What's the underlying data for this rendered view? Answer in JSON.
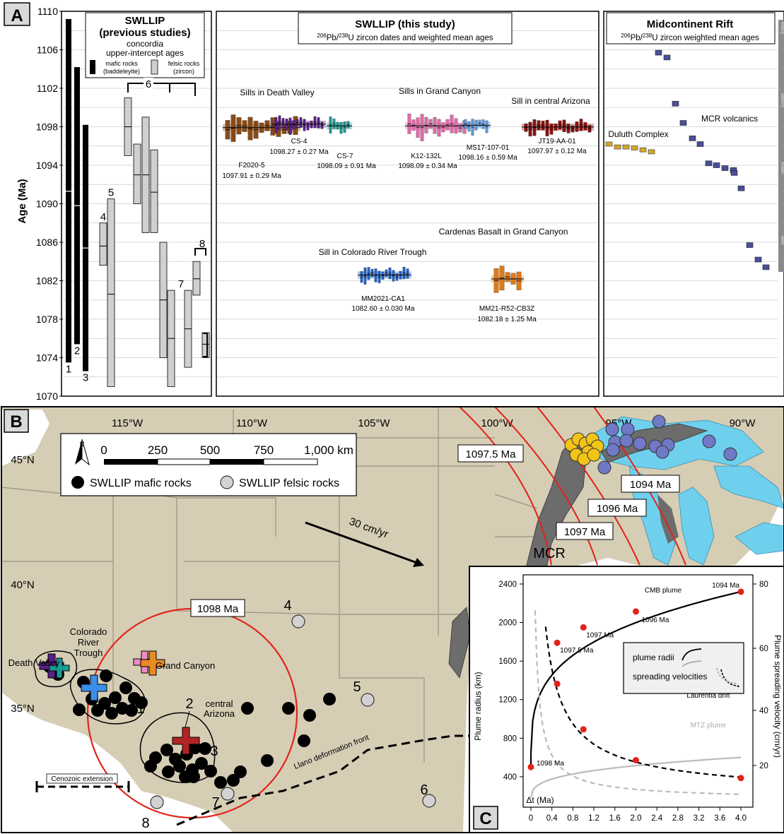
{
  "panel_labels": {
    "a": "A",
    "b": "B",
    "c": "C"
  },
  "panelA": {
    "ylabel": "Age (Ma)",
    "yticks": [
      1070,
      1074,
      1078,
      1082,
      1086,
      1090,
      1094,
      1098,
      1102,
      1106,
      1110
    ],
    "left": {
      "title1": "SWLLIP",
      "title2": "(previous  studies)",
      "sub1": "concordia",
      "sub2": "upper-intercept ages",
      "legend_mafic1": "mafic rocks",
      "legend_mafic2": "(baddeleyite)",
      "legend_felsic1": "felsic rocks",
      "legend_felsic2": "(zircon)",
      "bars": [
        {
          "label": "1",
          "type": "mafic",
          "min": 1073.5,
          "max": 1109.2,
          "mean": 1091.3
        },
        {
          "label": "2",
          "type": "mafic",
          "min": 1075.4,
          "max": 1104.2,
          "mean": 1089.8
        },
        {
          "label": "3",
          "type": "mafic",
          "min": 1072.6,
          "max": 1098.2,
          "mean": 1085.4
        },
        {
          "label": "4",
          "type": "felsic",
          "min": 1083.6,
          "max": 1088.0,
          "mean": 1085.6
        },
        {
          "label": "5",
          "type": "felsic",
          "min": 1071.0,
          "max": 1090.5,
          "mean": 1080.6
        },
        {
          "label": "",
          "type": "felsic",
          "min": 1095.0,
          "max": 1101.0,
          "mean": 1098.0
        },
        {
          "label": "",
          "type": "felsic",
          "min": 1090.0,
          "max": 1096.2,
          "mean": 1093.0
        },
        {
          "label": "",
          "type": "felsic",
          "min": 1087.0,
          "max": 1099.0,
          "mean": 1093.0
        },
        {
          "label": "",
          "type": "felsic",
          "min": 1087.0,
          "max": 1095.6,
          "mean": 1091.2
        },
        {
          "label": "",
          "type": "felsic",
          "min": 1074.0,
          "max": 1086.0,
          "mean": 1080.0
        },
        {
          "label": "",
          "type": "felsic",
          "min": 1071.0,
          "max": 1081.0,
          "mean": 1076.0
        },
        {
          "label": "7",
          "type": "felsic",
          "min": 1073.0,
          "max": 1081.0,
          "mean": 1077.0
        },
        {
          "label": "",
          "type": "felsic",
          "min": 1080.5,
          "max": 1084.0,
          "mean": 1082.2
        },
        {
          "label": "",
          "type": "felsic",
          "min": 1074.0,
          "max": 1076.6,
          "mean": 1075.4
        }
      ],
      "bracket6": "6",
      "bracket8": "8"
    },
    "middle": {
      "title": "SWLLIP (this study)",
      "sub_pre": "206",
      "sub_mid": "Pb/",
      "sub_sup2": "238",
      "sub_post": "U zircon dates and weighted mean ages",
      "groups": [
        {
          "header": "Sills in Death Valley"
        },
        {
          "header": "Sills in Grand Canyon"
        },
        {
          "header": "Sill in central Arizona"
        },
        {
          "header": "Sill in Colorado River Trough"
        },
        {
          "header": "Cardenas Basalt in Grand Canyon"
        }
      ],
      "samples": [
        {
          "name": "F2020-5",
          "age": "1097.91 ± 0.29 Ma",
          "color": "#8a4b14",
          "mean": 1097.91,
          "n": 13
        },
        {
          "name": "CS-4",
          "age": "1098.27 ± 0.27 Ma",
          "color": "#5a1f8a",
          "mean": 1098.27,
          "n": 14
        },
        {
          "name": "CS-7",
          "age": "1098.09 ± 0.91 Ma",
          "color": "#1a9b94",
          "mean": 1098.09,
          "n": 6
        },
        {
          "name": "K12-132L",
          "age": "1098.09 ± 0.34 Ma",
          "color": "#e06aa8",
          "mean": 1098.09,
          "n": 14
        },
        {
          "name": "MS17-107-01",
          "age": "1098.16 ± 0.59 Ma",
          "color": "#5b9be0",
          "mean": 1098.16,
          "n": 7
        },
        {
          "name": "JT19-AA-01",
          "age": "1097.97 ± 0.12 Ma",
          "color": "#8b1111",
          "mean": 1097.97,
          "n": 16
        },
        {
          "name": "MM2021-CA1",
          "age": "1082.60 ± 0.030 Ma",
          "color": "#1f63c8",
          "mean": 1082.6,
          "n": 14
        },
        {
          "name": "MM21-R52-CB3Z",
          "age": "1082.18 ± 1.25 Ma",
          "color": "#dd7a1a",
          "mean": 1082.18,
          "n": 5
        }
      ]
    },
    "right": {
      "title": "Midcontinent Rift",
      "sub_pre": "206",
      "sub_mid": "Pb/",
      "sub_sup2": "238",
      "sub_post": "U zircon weighted mean ages",
      "duluth_label": "Duluth Complex",
      "mcr_label": "MCR volcanics",
      "duluth_ages": [
        1096.2,
        1095.9,
        1095.9,
        1095.8,
        1095.6,
        1095.4
      ],
      "mcr_ages": [
        1105.7,
        1105.2,
        1100.4,
        1098.4,
        1096.8,
        1096.2,
        1094.2,
        1094.0,
        1093.7,
        1093.5,
        1093.2,
        1091.6,
        1085.7,
        1084.2,
        1083.4
      ],
      "strip_labels": [
        "early",
        "latent",
        "main",
        "late"
      ]
    }
  },
  "panelB": {
    "lon_labels": [
      "115°W",
      "110°W",
      "105°W",
      "100°W",
      "95°W",
      "90°W"
    ],
    "lat_labels": [
      "45°N",
      "40°N",
      "35°N"
    ],
    "north": "N",
    "scale_ticks": [
      "0",
      "250",
      "500",
      "750",
      "1,000 km"
    ],
    "legend_mafic": "SWLLIP mafic rocks",
    "legend_felsic": "SWLLIP felsic rocks",
    "arc_labels": [
      "1097.5 Ma",
      "1097 Ma",
      "1096 Ma",
      "1094 Ma"
    ],
    "circle_label": "1098 Ma",
    "drift_label": "30 cm/yr",
    "mcr": "MCR",
    "place_labels": {
      "dv": "Death Valley",
      "crt1": "Colorado",
      "crt2": "River",
      "crt3": "Trough",
      "gc": "Grand Canyon",
      "ca1": "central",
      "ca2": "Arizona"
    },
    "num_labels": [
      "1",
      "2",
      "3",
      "4",
      "5",
      "6",
      "7",
      "8"
    ],
    "cenozoic": "Cenozoic extension",
    "llano": "Llano deformation front"
  },
  "panelC": {
    "ylabel_left": "Plume radius (km)",
    "ylabel_right": "Plume spreading velocity (cm/yr)",
    "xlabel": "Δt (Ma)",
    "xticks": [
      "0",
      "0.4",
      "0.8",
      "1.2",
      "1.6",
      "2.0",
      "2.4",
      "2.8",
      "3.2",
      "3.6",
      "4.0"
    ],
    "yticks_left": [
      "400",
      "800",
      "1200",
      "1600",
      "2000",
      "2400"
    ],
    "yticks_right": [
      "20",
      "40",
      "60",
      "80"
    ],
    "cmb_label": "CMB plume",
    "mtz_label": "MTZ plume",
    "drift_label": "Laurentia drift",
    "legend_radii": "plume radii",
    "legend_vel": "spreading velocities",
    "point_labels": [
      "1098 Ma",
      "1097.5 Ma",
      "1097 Ma",
      "1096 Ma",
      "1094 Ma"
    ]
  },
  "chart_data": [
    {
      "type": "bar",
      "title": "SWLLIP (previous studies) concordia upper-intercept ages",
      "ylabel": "Age (Ma)",
      "ylim": [
        1070,
        1110
      ],
      "series": [
        {
          "name": "mafic rocks (baddeleyite)",
          "ranges": [
            [
              1073.5,
              1109.2
            ],
            [
              1075.4,
              1104.2
            ],
            [
              1072.6,
              1098.2
            ]
          ]
        },
        {
          "name": "felsic rocks (zircon)",
          "ranges": [
            [
              1083.6,
              1088.0
            ],
            [
              1071.0,
              1090.5
            ],
            [
              1095.0,
              1101.0
            ],
            [
              1090.0,
              1096.2
            ],
            [
              1087.0,
              1099.0
            ],
            [
              1087.0,
              1095.6
            ],
            [
              1074.0,
              1086.0
            ],
            [
              1071.0,
              1081.0
            ],
            [
              1073.0,
              1081.0
            ],
            [
              1080.5,
              1084.0
            ],
            [
              1074.0,
              1076.6
            ]
          ]
        }
      ]
    },
    {
      "type": "scatter",
      "title": "SWLLIP (this study) 206Pb/238U zircon dates and weighted mean ages",
      "ylabel": "Age (Ma)",
      "ylim": [
        1070,
        1110
      ],
      "categories": [
        "F2020-5",
        "CS-4",
        "CS-7",
        "K12-132L",
        "MS17-107-01",
        "JT19-AA-01",
        "MM2021-CA1",
        "MM21-R52-CB3Z"
      ],
      "values": [
        1097.91,
        1098.27,
        1098.09,
        1098.09,
        1098.16,
        1097.97,
        1082.6,
        1082.18
      ],
      "errors": [
        0.29,
        0.27,
        0.91,
        0.34,
        0.59,
        0.12,
        0.03,
        1.25
      ]
    },
    {
      "type": "scatter",
      "title": "Midcontinent Rift 206Pb/238U zircon weighted mean ages",
      "ylabel": "Age (Ma)",
      "ylim": [
        1070,
        1110
      ],
      "series": [
        {
          "name": "Duluth Complex",
          "values": [
            1096.2,
            1095.9,
            1095.9,
            1095.8,
            1095.6,
            1095.4
          ]
        },
        {
          "name": "MCR volcanics",
          "values": [
            1105.7,
            1105.2,
            1100.4,
            1098.4,
            1096.8,
            1096.2,
            1094.2,
            1094.0,
            1093.7,
            1093.5,
            1093.2,
            1091.6,
            1085.7,
            1084.2,
            1083.4
          ]
        }
      ]
    },
    {
      "type": "line",
      "xlabel": "Δt (Ma)",
      "ylabel": "Plume radius (km)",
      "xlim": [
        0,
        4.0
      ],
      "ylim": [
        200,
        2500
      ],
      "series": [
        {
          "name": "CMB plume",
          "x": [
            0,
            0.5,
            1.0,
            2.0,
            4.0
          ],
          "y": [
            500,
            1800,
            1950,
            2120,
            2320
          ]
        },
        {
          "name": "MTZ plume",
          "x": [
            0,
            0.5,
            1.0,
            2.0,
            4.0
          ],
          "y": [
            150,
            450,
            500,
            550,
            600
          ]
        }
      ],
      "points_labels": [
        "1098 Ma",
        "1097.5 Ma",
        "1097 Ma",
        "1096 Ma",
        "1094 Ma"
      ],
      "velocity_series": {
        "x": [
          0.5,
          1.0,
          2.0,
          4.0
        ],
        "y": [
          44,
          23,
          13,
          7
        ],
        "ylabel": "Plume spreading velocity (cm/yr)",
        "ylim": [
          0,
          85
        ]
      }
    }
  ]
}
